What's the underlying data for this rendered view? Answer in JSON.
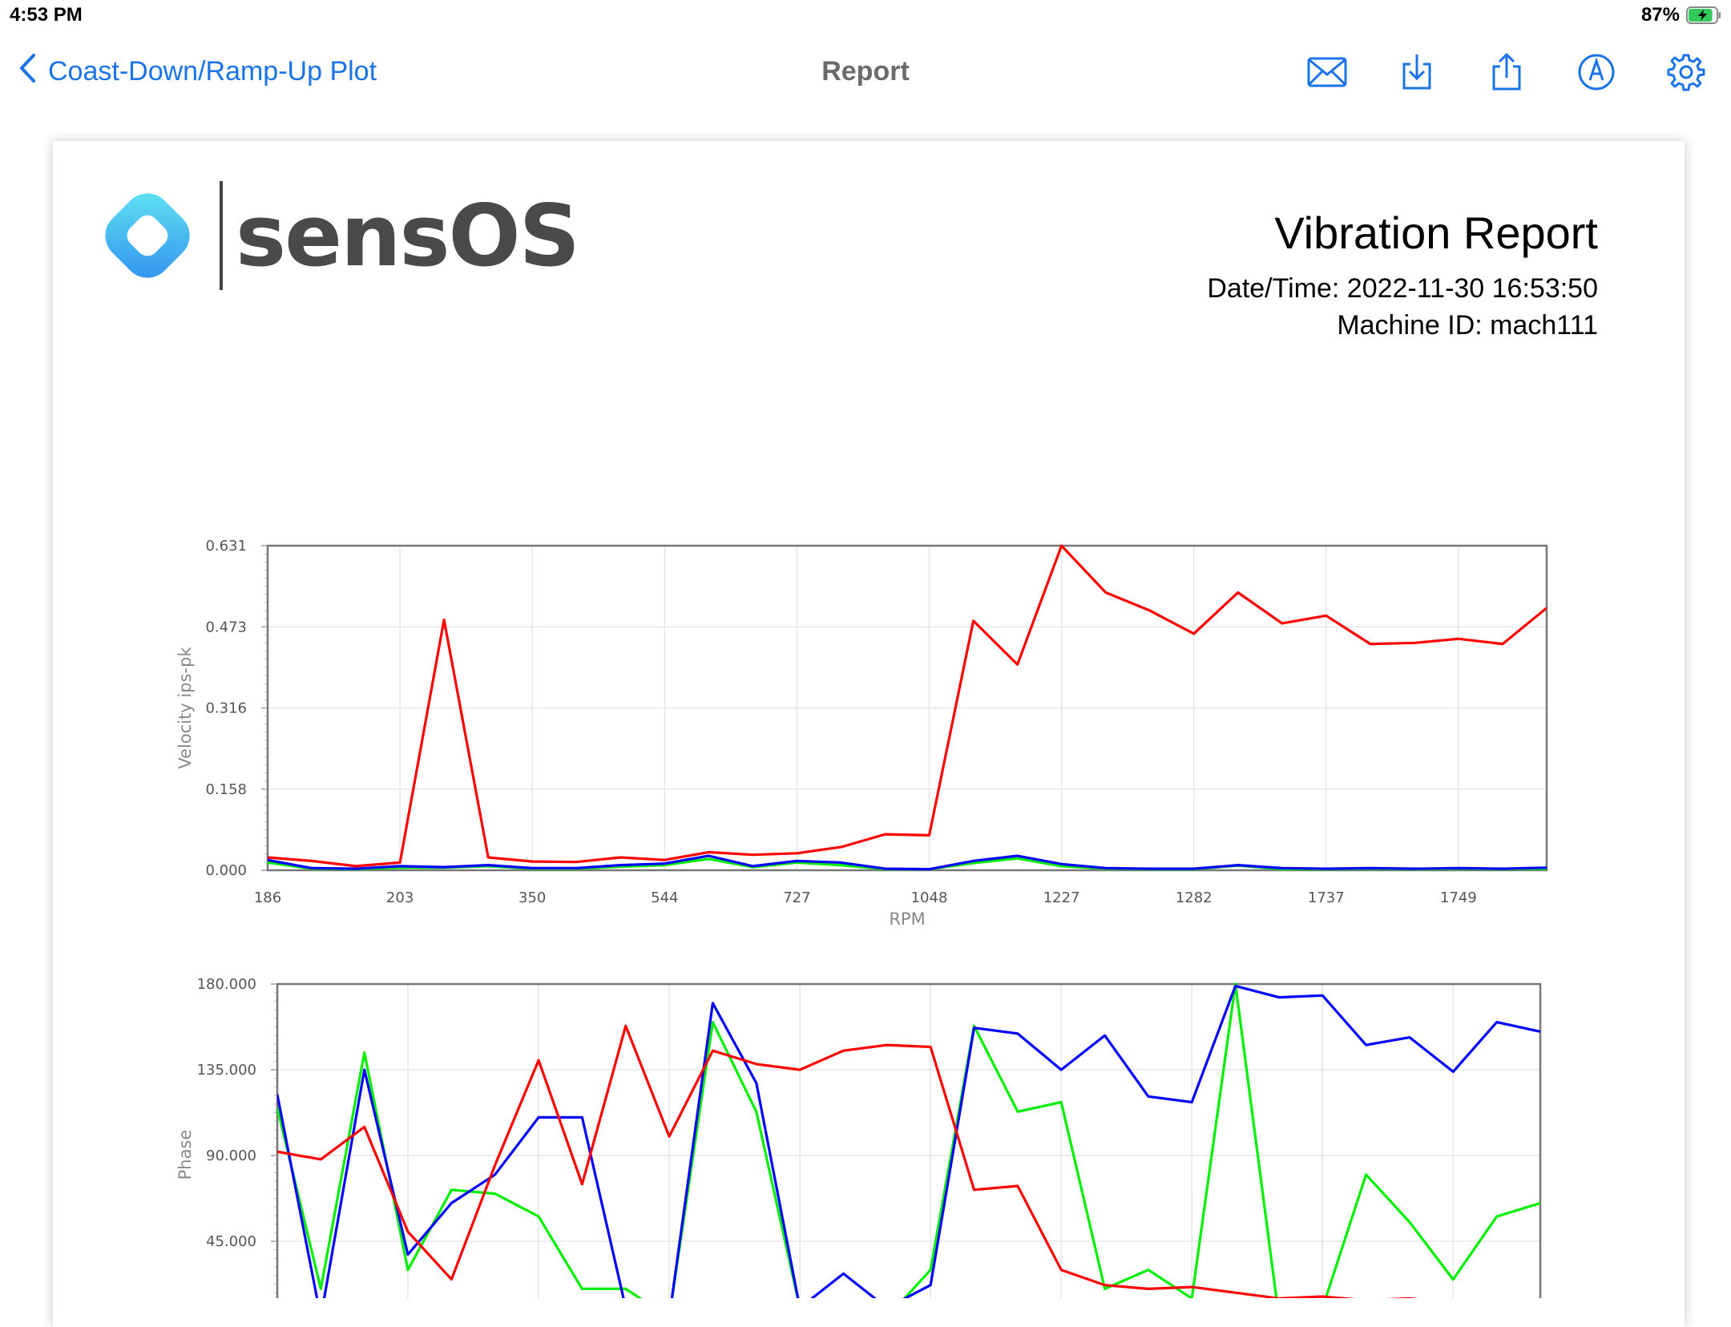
{
  "status_bar": {
    "time": "4:53 PM",
    "battery_percent": "87%",
    "battery_level": 0.87,
    "charging": true
  },
  "nav": {
    "back_label": "Coast-Down/Ramp-Up Plot",
    "title": "Report",
    "actions": [
      "mail-icon",
      "download-icon",
      "share-icon",
      "markup-icon",
      "gear-icon"
    ],
    "accent_color": "#1a73e8"
  },
  "report": {
    "logo_text": "sensOS",
    "title": "Vibration Report",
    "datetime": "Date/Time: 2022-11-30 16:53:50",
    "machine_id": "Machine ID: mach111"
  },
  "chart_data": [
    {
      "type": "line",
      "xlabel": "RPM",
      "ylabel": "Velocity ips-pk",
      "ylim": [
        0,
        0.631
      ],
      "yticks": [
        "0.631",
        "0.473",
        "0.316",
        "0.158",
        "0.000"
      ],
      "xticks": [
        "186",
        "203",
        "350",
        "544",
        "727",
        "1048",
        "1227",
        "1282",
        "1737",
        "1749"
      ],
      "grid": true,
      "point_count": 30,
      "series": [
        {
          "color": "#ff0000",
          "values": [
            0.025,
            0.018,
            0.008,
            0.015,
            0.487,
            0.025,
            0.017,
            0.016,
            0.025,
            0.02,
            0.035,
            0.03,
            0.033,
            0.045,
            0.07,
            0.068,
            0.485,
            0.4,
            0.631,
            0.54,
            0.505,
            0.46,
            0.54,
            0.48,
            0.495,
            0.44,
            0.442,
            0.45,
            0.44,
            0.51
          ]
        },
        {
          "color": "#0000ff",
          "values": [
            0.02,
            0.004,
            0.003,
            0.008,
            0.006,
            0.01,
            0.004,
            0.004,
            0.01,
            0.013,
            0.028,
            0.008,
            0.018,
            0.015,
            0.003,
            0.002,
            0.018,
            0.028,
            0.012,
            0.004,
            0.003,
            0.003,
            0.01,
            0.004,
            0.003,
            0.004,
            0.003,
            0.004,
            0.003,
            0.005
          ]
        },
        {
          "color": "#00ee00",
          "values": [
            0.015,
            0.003,
            0.002,
            0.005,
            0.005,
            0.008,
            0.003,
            0.003,
            0.007,
            0.01,
            0.022,
            0.006,
            0.015,
            0.01,
            0.002,
            0.002,
            0.014,
            0.023,
            0.008,
            0.003,
            0.002,
            0.002,
            0.009,
            0.002,
            0.002,
            0.003,
            0.002,
            0.003,
            0.002,
            0.003
          ]
        }
      ]
    },
    {
      "type": "line",
      "ylabel": "Phase",
      "ylim": [
        0,
        180
      ],
      "yticks": [
        "180.000",
        "135.000",
        "90.000",
        "45.000"
      ],
      "grid": true,
      "point_count": 30,
      "series": [
        {
          "color": "#ff0000",
          "values": [
            92,
            88,
            105,
            50,
            25,
            85,
            140,
            75,
            158,
            100,
            145,
            138,
            135,
            145,
            148,
            147,
            72,
            74,
            30,
            22,
            20,
            21,
            18,
            15,
            16,
            14,
            15,
            12,
            14,
            10
          ]
        },
        {
          "color": "#0000ff",
          "values": [
            122,
            5,
            135,
            38,
            65,
            80,
            110,
            110,
            10,
            5,
            170,
            128,
            10,
            28,
            10,
            22,
            157,
            154,
            135,
            153,
            121,
            118,
            179,
            173,
            174,
            148,
            152,
            134,
            160,
            155
          ]
        },
        {
          "color": "#00ee00",
          "values": [
            115,
            20,
            144,
            30,
            72,
            70,
            58,
            20,
            20,
            5,
            160,
            113,
            10,
            5,
            5,
            30,
            158,
            113,
            118,
            20,
            30,
            15,
            180,
            5,
            10,
            80,
            55,
            25,
            58,
            65
          ]
        }
      ]
    }
  ]
}
